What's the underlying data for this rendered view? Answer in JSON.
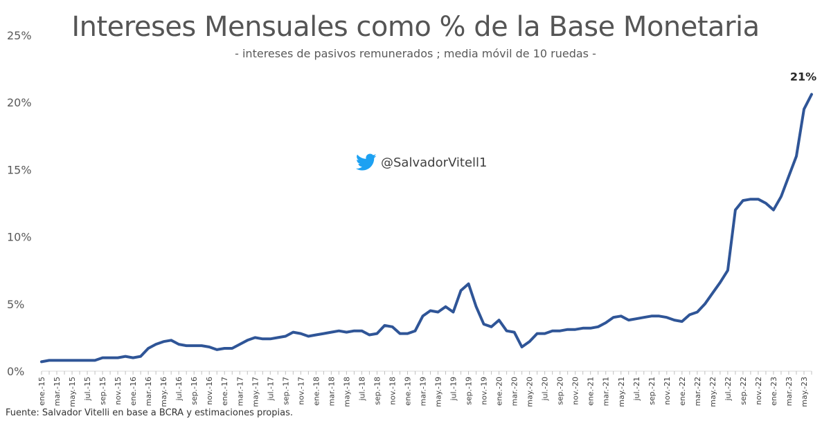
{
  "chart_data": {
    "type": "line",
    "title": "Intereses Mensuales como % de la Base Monetaria",
    "subtitle": "- intereses de pasivos remunerados ; media móvil de 10 ruedas -",
    "ylim": [
      0,
      25
    ],
    "y_ticks": [
      "0%",
      "5%",
      "10%",
      "15%",
      "20%",
      "25%"
    ],
    "y_tick_values": [
      0,
      5,
      10,
      15,
      20,
      25
    ],
    "x_ticks": [
      "ene.-15",
      "mar.-15",
      "may.-15",
      "jul.-15",
      "sep.-15",
      "nov.-15",
      "ene.-16",
      "mar.-16",
      "may.-16",
      "jul.-16",
      "sep.-16",
      "nov.-16",
      "ene.-17",
      "mar.-17",
      "may.-17",
      "jul.-17",
      "sep.-17",
      "nov.-17",
      "ene.-18",
      "mar.-18",
      "may.-18",
      "jul.-18",
      "sep.-18",
      "nov.-18",
      "ene.-19",
      "mar.-19",
      "may.-19",
      "jul.-19",
      "sep.-19",
      "nov.-19",
      "ene.-20",
      "mar.-20",
      "may.-20",
      "jul.-20",
      "sep.-20",
      "nov.-20",
      "ene.-21",
      "mar.-21",
      "may.-21",
      "jul.-21",
      "sep.-21",
      "nov.-21",
      "ene.-22",
      "mar.-22",
      "may.-22",
      "jul.-22",
      "sep.-22",
      "nov.-22",
      "ene.-23",
      "mar.-23",
      "may.-23"
    ],
    "grid": "none",
    "legend": "none",
    "line_color": "#2F5597",
    "series": [
      {
        "x": [
          "2015-01",
          "2015-02",
          "2015-03",
          "2015-04",
          "2015-05",
          "2015-06",
          "2015-07",
          "2015-08",
          "2015-09",
          "2015-10",
          "2015-11",
          "2015-12",
          "2016-01",
          "2016-02",
          "2016-03",
          "2016-04",
          "2016-05",
          "2016-06",
          "2016-07",
          "2016-08",
          "2016-09",
          "2016-10",
          "2016-11",
          "2016-12",
          "2017-01",
          "2017-02",
          "2017-03",
          "2017-04",
          "2017-05",
          "2017-06",
          "2017-07",
          "2017-08",
          "2017-09",
          "2017-10",
          "2017-11",
          "2017-12",
          "2018-01",
          "2018-02",
          "2018-03",
          "2018-04",
          "2018-05",
          "2018-06",
          "2018-07",
          "2018-08",
          "2018-09",
          "2018-10",
          "2018-11",
          "2018-12",
          "2019-01",
          "2019-02",
          "2019-03",
          "2019-04",
          "2019-05",
          "2019-06",
          "2019-07",
          "2019-08",
          "2019-09",
          "2019-10",
          "2019-11",
          "2019-12",
          "2020-01",
          "2020-02",
          "2020-03",
          "2020-04",
          "2020-05",
          "2020-06",
          "2020-07",
          "2020-08",
          "2020-09",
          "2020-10",
          "2020-11",
          "2020-12",
          "2021-01",
          "2021-02",
          "2021-03",
          "2021-04",
          "2021-05",
          "2021-06",
          "2021-07",
          "2021-08",
          "2021-09",
          "2021-10",
          "2021-11",
          "2021-12",
          "2022-01",
          "2022-02",
          "2022-03",
          "2022-04",
          "2022-05",
          "2022-06",
          "2022-07",
          "2022-08",
          "2022-09",
          "2022-10",
          "2022-11",
          "2022-12",
          "2023-01",
          "2023-02",
          "2023-03",
          "2023-04",
          "2023-05",
          "2023-06"
        ],
        "values": [
          0.7,
          0.8,
          0.8,
          0.8,
          0.8,
          0.8,
          0.8,
          0.8,
          1.0,
          1.0,
          1.0,
          1.1,
          1.0,
          1.1,
          1.7,
          2.0,
          2.2,
          2.3,
          2.0,
          1.9,
          1.9,
          1.9,
          1.8,
          1.6,
          1.7,
          1.7,
          2.0,
          2.3,
          2.5,
          2.4,
          2.4,
          2.5,
          2.6,
          2.9,
          2.8,
          2.6,
          2.7,
          2.8,
          2.9,
          3.0,
          2.9,
          3.0,
          3.0,
          2.7,
          2.8,
          3.4,
          3.3,
          2.8,
          2.8,
          3.0,
          4.1,
          4.5,
          4.4,
          4.8,
          4.4,
          6.0,
          6.5,
          4.8,
          3.5,
          3.3,
          3.8,
          3.0,
          2.9,
          1.8,
          2.2,
          2.8,
          2.8,
          3.0,
          3.0,
          3.1,
          3.1,
          3.2,
          3.2,
          3.3,
          3.6,
          4.0,
          4.1,
          3.8,
          3.9,
          4.0,
          4.1,
          4.1,
          4.0,
          3.8,
          3.7,
          4.2,
          4.4,
          5.0,
          5.8,
          6.6,
          7.5,
          12.0,
          12.7,
          12.8,
          12.8,
          12.5,
          12.0,
          13.0,
          14.5,
          16.0,
          19.5,
          20.6
        ]
      }
    ],
    "end_label": "21%"
  },
  "watermark": {
    "icon": "twitter-bird-icon",
    "color": "#1DA1F2",
    "handle": "@SalvadorVitell1"
  },
  "source": "Fuente: Salvador Vitelli en base a BCRA y estimaciones propias."
}
